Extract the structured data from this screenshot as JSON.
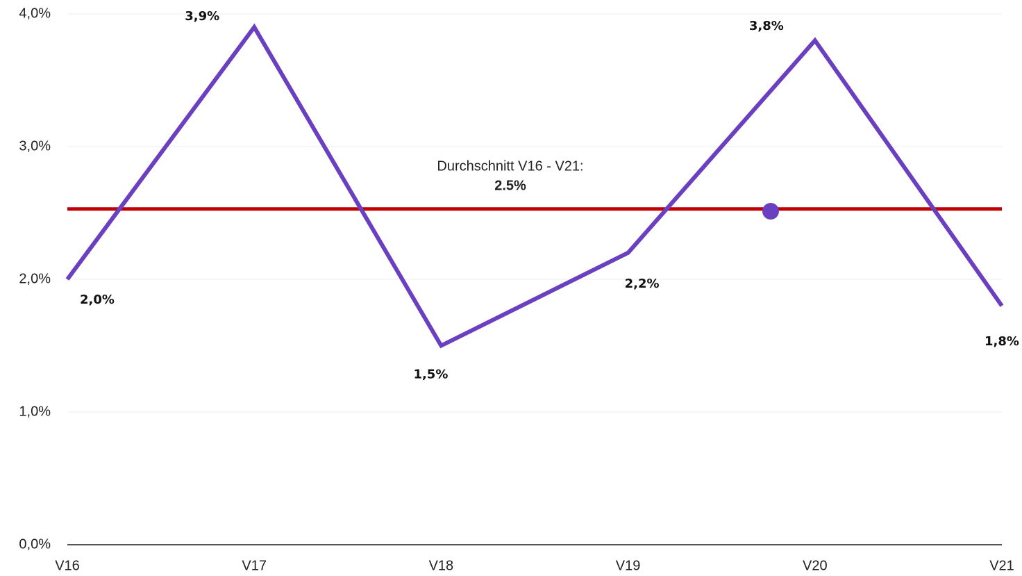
{
  "chart_data": {
    "type": "line",
    "categories": [
      "V16",
      "V17",
      "V18",
      "V19",
      "V20",
      "V21"
    ],
    "series": [
      {
        "name": null,
        "color": "#6a3fc0",
        "values": [
          2.0,
          3.9,
          1.5,
          2.2,
          3.8,
          1.8
        ],
        "value_labels": [
          "2,0%",
          "3,9%",
          "1,5%",
          "2,2%",
          "3,8%",
          "1,8%"
        ]
      }
    ],
    "ylim": [
      0,
      4
    ],
    "yticks": [
      {
        "value": 0,
        "label": "0,0%"
      },
      {
        "value": 1,
        "label": "1,0%"
      },
      {
        "value": 2,
        "label": "2,0%"
      },
      {
        "value": 3,
        "label": "3,0%"
      },
      {
        "value": 4,
        "label": "4,0%"
      }
    ],
    "grid": true,
    "average_line": {
      "label": "Durchschnitt V16 - V21:",
      "value": 2.53,
      "value_label": "2.5%",
      "color": "#c00000"
    }
  }
}
